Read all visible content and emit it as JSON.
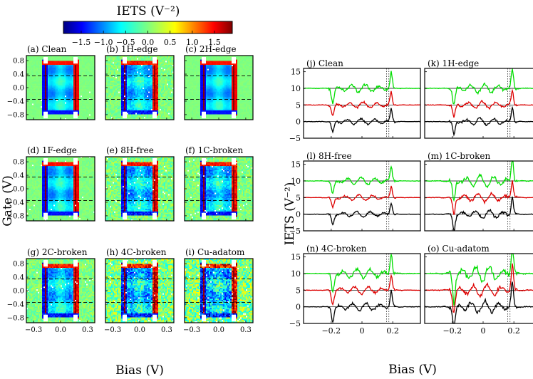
{
  "colorbar": {
    "label": "IETS (V⁻²)",
    "ticks": [
      "−1.5",
      "−1.0",
      "−0.5",
      "0.0",
      "0.5",
      "1.0",
      "1.5"
    ],
    "range": [
      -1.9,
      1.9
    ]
  },
  "chart_data": [
    {
      "type": "heatmap",
      "ylabel": "Gate (V)",
      "xlabel": "Bias (V)",
      "x_ticks": [
        "−0.3",
        "0.0",
        "0.3"
      ],
      "y_ticks": [
        "0.8",
        "0.4",
        "0.0",
        "−0.4",
        "−0.8"
      ],
      "xlim": [
        -0.38,
        0.38
      ],
      "ylim": [
        -0.95,
        0.95
      ],
      "panels": [
        {
          "label": "(a) Clean"
        },
        {
          "label": "(b) 1H-edge"
        },
        {
          "label": "(c) 2H-edge"
        },
        {
          "label": "(d) 1F-edge"
        },
        {
          "label": "(e) 8H-free"
        },
        {
          "label": "(f) 1C-broken"
        },
        {
          "label": "(g) 2C-broken"
        },
        {
          "label": "(h) 4C-broken"
        },
        {
          "label": "(i) Cu-adatom"
        }
      ]
    },
    {
      "type": "line",
      "ylabel": "IETS (V⁻²)",
      "xlabel": "Bias (V)",
      "x_ticks": [
        "−0.2",
        "0",
        "0.2"
      ],
      "y_ticks": [
        "15",
        "10",
        "5",
        "0",
        "−5"
      ],
      "xlim": [
        -0.38,
        0.38
      ],
      "ylim": [
        -5,
        16
      ],
      "series_colors": [
        "#00dd00",
        "#dd0000",
        "#000000"
      ],
      "series_offsets": [
        10,
        5,
        0
      ],
      "panels": [
        {
          "label": "(j) Clean"
        },
        {
          "label": "(k) 1H-edge"
        },
        {
          "label": "(l) 8H-free"
        },
        {
          "label": "(m) 1C-broken"
        },
        {
          "label": "(n) 4C-broken"
        },
        {
          "label": "(o) Cu-adatom"
        }
      ]
    }
  ]
}
